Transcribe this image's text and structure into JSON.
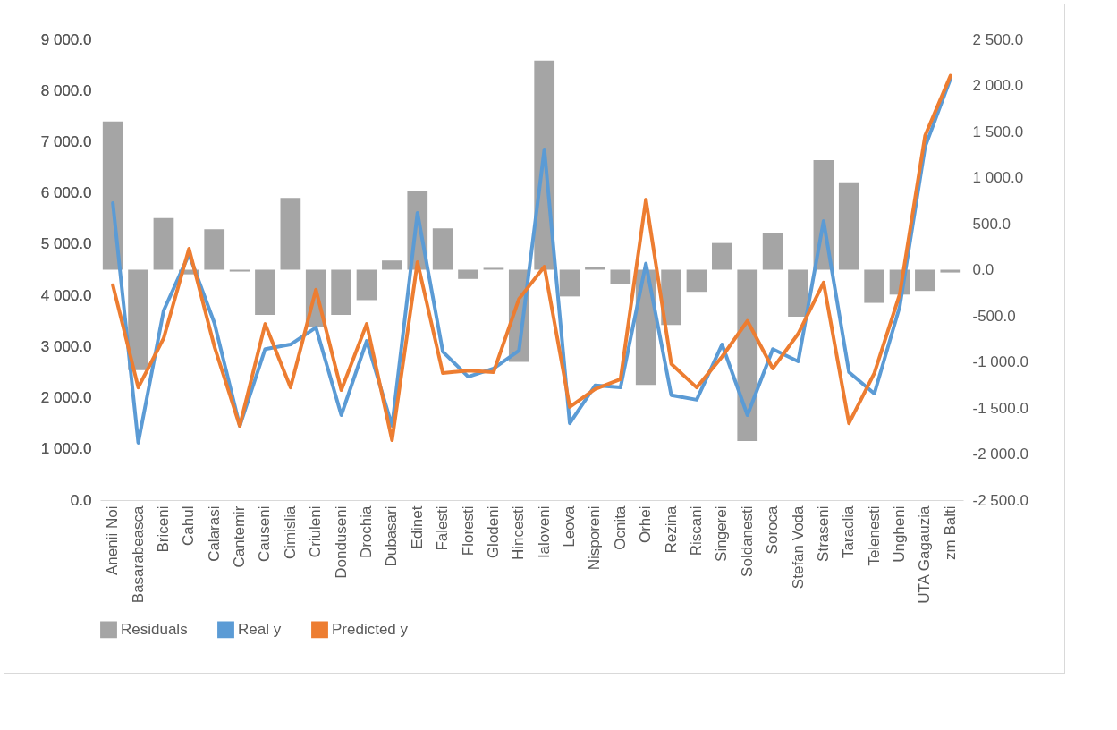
{
  "chart_data": {
    "type": "line",
    "categories": [
      "Anenii Noi",
      "Basarabeasca",
      "Briceni",
      "Cahul",
      "Calarasi",
      "Cantemir",
      "Causeni",
      "Cimislia",
      "Criuleni",
      "Donduseni",
      "Drochia",
      "Dubasari",
      "Edinet",
      "Falesti",
      "Floresti",
      "Glodeni",
      "Hincesti",
      "Ialoveni",
      "Leova",
      "Nisporeni",
      "Ocnita",
      "Orhei",
      "Rezina",
      "Riscani",
      "Singerei",
      "Soldanesti",
      "Soroca",
      "Stefan Voda",
      "Straseni",
      "Taraclia",
      "Telenesti",
      "Ungheni",
      "UTA Gagauzia",
      "zm Balti"
    ],
    "series": [
      {
        "name": "Residuals",
        "type": "bar",
        "axis": "y2",
        "color": "#a5a5a5",
        "values": [
          1610,
          -1090,
          560,
          -50,
          440,
          -20,
          -490,
          780,
          -620,
          -490,
          -330,
          100,
          860,
          450,
          -100,
          20,
          -1000,
          2270,
          -290,
          30,
          -160,
          -1250,
          -600,
          -240,
          290,
          -1860,
          400,
          -510,
          1190,
          950,
          -360,
          -270,
          -230,
          -30
        ]
      },
      {
        "name": "Real y",
        "color": "#5b9bd5",
        "values": [
          5800,
          1120,
          3700,
          4800,
          3460,
          1450,
          2950,
          3040,
          3370,
          1660,
          3110,
          1450,
          5610,
          2900,
          2410,
          2570,
          2920,
          6850,
          1500,
          2240,
          2200,
          4620,
          2050,
          1960,
          3040,
          1660,
          2950,
          2710,
          5450,
          2500,
          2080,
          3780,
          6900,
          8230
        ]
      },
      {
        "name": "Predicted y",
        "color": "#ed7d31",
        "values": [
          4200,
          2200,
          3160,
          4910,
          3000,
          1450,
          3440,
          2200,
          4110,
          2150,
          3440,
          1170,
          4650,
          2480,
          2530,
          2500,
          3930,
          4560,
          1820,
          2170,
          2360,
          5870,
          2660,
          2200,
          2800,
          3500,
          2570,
          3250,
          4250,
          1500,
          2480,
          4020,
          7120,
          8290
        ]
      }
    ],
    "ylim": [
      0,
      9000
    ],
    "yticks": [
      {
        "value": 0,
        "label": "0.0"
      },
      {
        "value": 1000,
        "label": "1 000.0"
      },
      {
        "value": 2000,
        "label": "2 000.0"
      },
      {
        "value": 3000,
        "label": "3 000.0"
      },
      {
        "value": 4000,
        "label": "4 000.0"
      },
      {
        "value": 5000,
        "label": "5 000.0"
      },
      {
        "value": 6000,
        "label": "6 000.0"
      },
      {
        "value": 7000,
        "label": "7 000.0"
      },
      {
        "value": 8000,
        "label": "8 000.0"
      },
      {
        "value": 9000,
        "label": "9 000.0"
      }
    ],
    "y2lim": [
      -2500,
      2500
    ],
    "y2ticks": [
      {
        "value": -2500,
        "label": "-2 500.0"
      },
      {
        "value": -2000,
        "label": "-2 000.0"
      },
      {
        "value": -1500,
        "label": "-1 500.0"
      },
      {
        "value": -1000,
        "label": "-1 000.0"
      },
      {
        "value": -500,
        "label": "-500.0"
      },
      {
        "value": 0,
        "label": "0.0"
      },
      {
        "value": 500,
        "label": "500.0"
      },
      {
        "value": 1000,
        "label": "1 000.0"
      },
      {
        "value": 1500,
        "label": "1 500.0"
      },
      {
        "value": 2000,
        "label": "2 000.0"
      },
      {
        "value": 2500,
        "label": "2 500.0"
      }
    ],
    "grid": false,
    "legend": "bottom"
  }
}
